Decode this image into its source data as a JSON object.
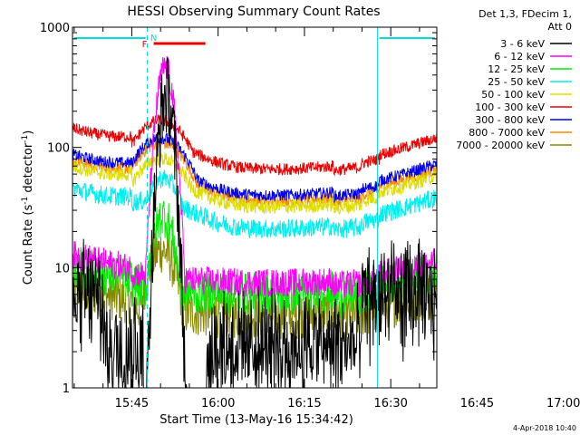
{
  "chart_data": {
    "type": "line",
    "title": "HESSI Observing Summary Count Rates",
    "xlabel": "Start Time (13-May-16 15:34:42)",
    "ylabel_main": "Count Rate (s",
    "ylabel_sup1": "-1",
    "ylabel_mid": " detector",
    "ylabel_sup2": "-1",
    "ylabel_end": ")",
    "yscale": "log",
    "ylim": [
      1,
      1000
    ],
    "xlim_minutes_after_1530": [
      4.7,
      68.0
    ],
    "x_ticks": [
      "15:45",
      "16:00",
      "16:15",
      "16:30",
      "16:45",
      "17:00"
    ],
    "y_ticks": [
      "1",
      "10",
      "100",
      "1000"
    ],
    "legend_header": [
      "Det 1,3, FDecim 1,",
      "Att 0"
    ],
    "legend_position": "right",
    "flags": {
      "night_label": "N",
      "flare_label": "F",
      "night_color": "#00dddd",
      "flare_color": "#ee0000",
      "night_intervals_min": [
        [
          4.7,
          17.7
        ],
        [
          57.7,
          68.0
        ]
      ],
      "flare_interval_min": [
        18.8,
        27.8
      ]
    },
    "timestamp": "4-Apr-2018 10:40",
    "series": [
      {
        "name": "3 - 6 keV",
        "color": "#000000",
        "base": 0.3,
        "peak": 270,
        "peak_t": 21.0,
        "width": 1.0,
        "noise": 0.35,
        "floor": 1.5
      },
      {
        "name": "6 - 12 keV",
        "color": "#ff00ff",
        "base": 7.5,
        "peak": 470,
        "peak_t": 20.8,
        "width": 1.2,
        "noise": 0.12,
        "floor": 0
      },
      {
        "name": "12 - 25 keV",
        "color": "#00ee00",
        "base": 6.0,
        "peak": 27,
        "peak_t": 20.5,
        "width": 1.8,
        "noise": 0.18,
        "floor": 0
      },
      {
        "name": "25 - 50 keV",
        "color": "#00eeee",
        "base": 21,
        "peak": 45,
        "peak_t": 20.5,
        "width": 3.0,
        "noise": 0.08,
        "floor": 0
      },
      {
        "name": "50 - 100 keV",
        "color": "#dddd00",
        "base": 32,
        "peak": 65,
        "peak_t": 20.0,
        "width": 5.0,
        "noise": 0.06,
        "floor": 0
      },
      {
        "name": "100 - 300 keV",
        "color": "#ee0000",
        "base": 66,
        "peak": 135,
        "peak_t": 20.0,
        "width": 5.0,
        "noise": 0.05,
        "floor": 0
      },
      {
        "name": "300 - 800 keV",
        "color": "#0000ee",
        "base": 40,
        "peak": 100,
        "peak_t": 20.0,
        "width": 5.0,
        "noise": 0.05,
        "floor": 0
      },
      {
        "name": "800 - 7000 keV",
        "color": "#ff8800",
        "base": 36,
        "peak": 90,
        "peak_t": 20.0,
        "width": 5.0,
        "noise": 0.05,
        "floor": 0
      },
      {
        "name": "7000 - 20000 keV",
        "color": "#888800",
        "base": 4.0,
        "peak": 14,
        "peak_t": 20.2,
        "width": 2.5,
        "noise": 0.2,
        "floor": 0
      }
    ]
  }
}
